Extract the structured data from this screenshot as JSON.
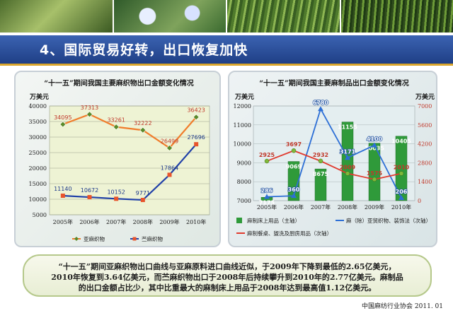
{
  "header": {
    "title": "4、国际贸易好转，出口恢复加快"
  },
  "chart_data": [
    {
      "type": "line",
      "title": "“十一五”期间我国主要麻织物出口金额变化情况",
      "ylabel": "万美元",
      "categories": [
        "2005年",
        "2006年",
        "2007年",
        "2008年",
        "2009年",
        "2010年"
      ],
      "ylim": [
        5000,
        40000
      ],
      "yticks": [
        5000,
        10000,
        15000,
        20000,
        25000,
        30000,
        35000,
        40000
      ],
      "grid": true,
      "legend_position": "bottom",
      "series": [
        {
          "name": "亚麻织物",
          "values": [
            34095,
            37313,
            33261,
            32222,
            26499,
            36423
          ],
          "color": "#f07d2c"
        },
        {
          "name": "苎麻织物",
          "values": [
            11140,
            10672,
            10152,
            9771,
            17864,
            27696
          ],
          "color": "#2040a8"
        }
      ]
    },
    {
      "type": "bar",
      "title": "“十一五”期间我国主要麻制品出口金额变化情况",
      "ylabel": "万美元",
      "y2label": "万美元",
      "categories": [
        "2005年",
        "2006年",
        "2007年",
        "2008年",
        "2009年",
        "2010年"
      ],
      "ylim": [
        7000,
        12000
      ],
      "yticks": [
        7000,
        8000,
        9000,
        10000,
        11000,
        12000
      ],
      "y2lim": [
        0,
        7000
      ],
      "y2ticks": [
        0,
        1400,
        2800,
        4200,
        5600,
        7000
      ],
      "grid": true,
      "legend_position": "bottom",
      "series": [
        {
          "name": "麻制床上用品（主轴）",
          "axis": "primary",
          "type": "bar",
          "values": [
            7175,
            9069,
            8675,
            11155,
            10035,
            10405
          ],
          "color": "#2f9a3a"
        },
        {
          "name": "麻（除）亚贸织物、装饰法（次轴）",
          "axis": "secondary",
          "type": "line",
          "values": [
            286,
            360,
            6780,
            3171,
            4100,
            206
          ],
          "color": "#2d6fd6"
        },
        {
          "name": "麻制餐桌、盥洗及厨房用品（次轴）",
          "axis": "secondary",
          "type": "line",
          "values": [
            2925,
            3697,
            2932,
            2009,
            1575,
            2010
          ],
          "color": "#e03a2e"
        }
      ]
    }
  ],
  "note": {
    "line1": "“十一五”期间亚麻织物出口曲线与亚麻原料进口曲线近似，于2009年下降到最低的2.65亿美元，",
    "line2": "2010年恢复到3.64亿美元，而苎麻织物出口于2008年后持续攀升到2010年的2.77亿美元。麻制品",
    "line3": "的出口金额占比少，其中比重最大的麻制床上用品于2008年达到最高值1.12亿美元。"
  },
  "footer": {
    "text": "中国麻纺行业协会 2011. 01"
  }
}
